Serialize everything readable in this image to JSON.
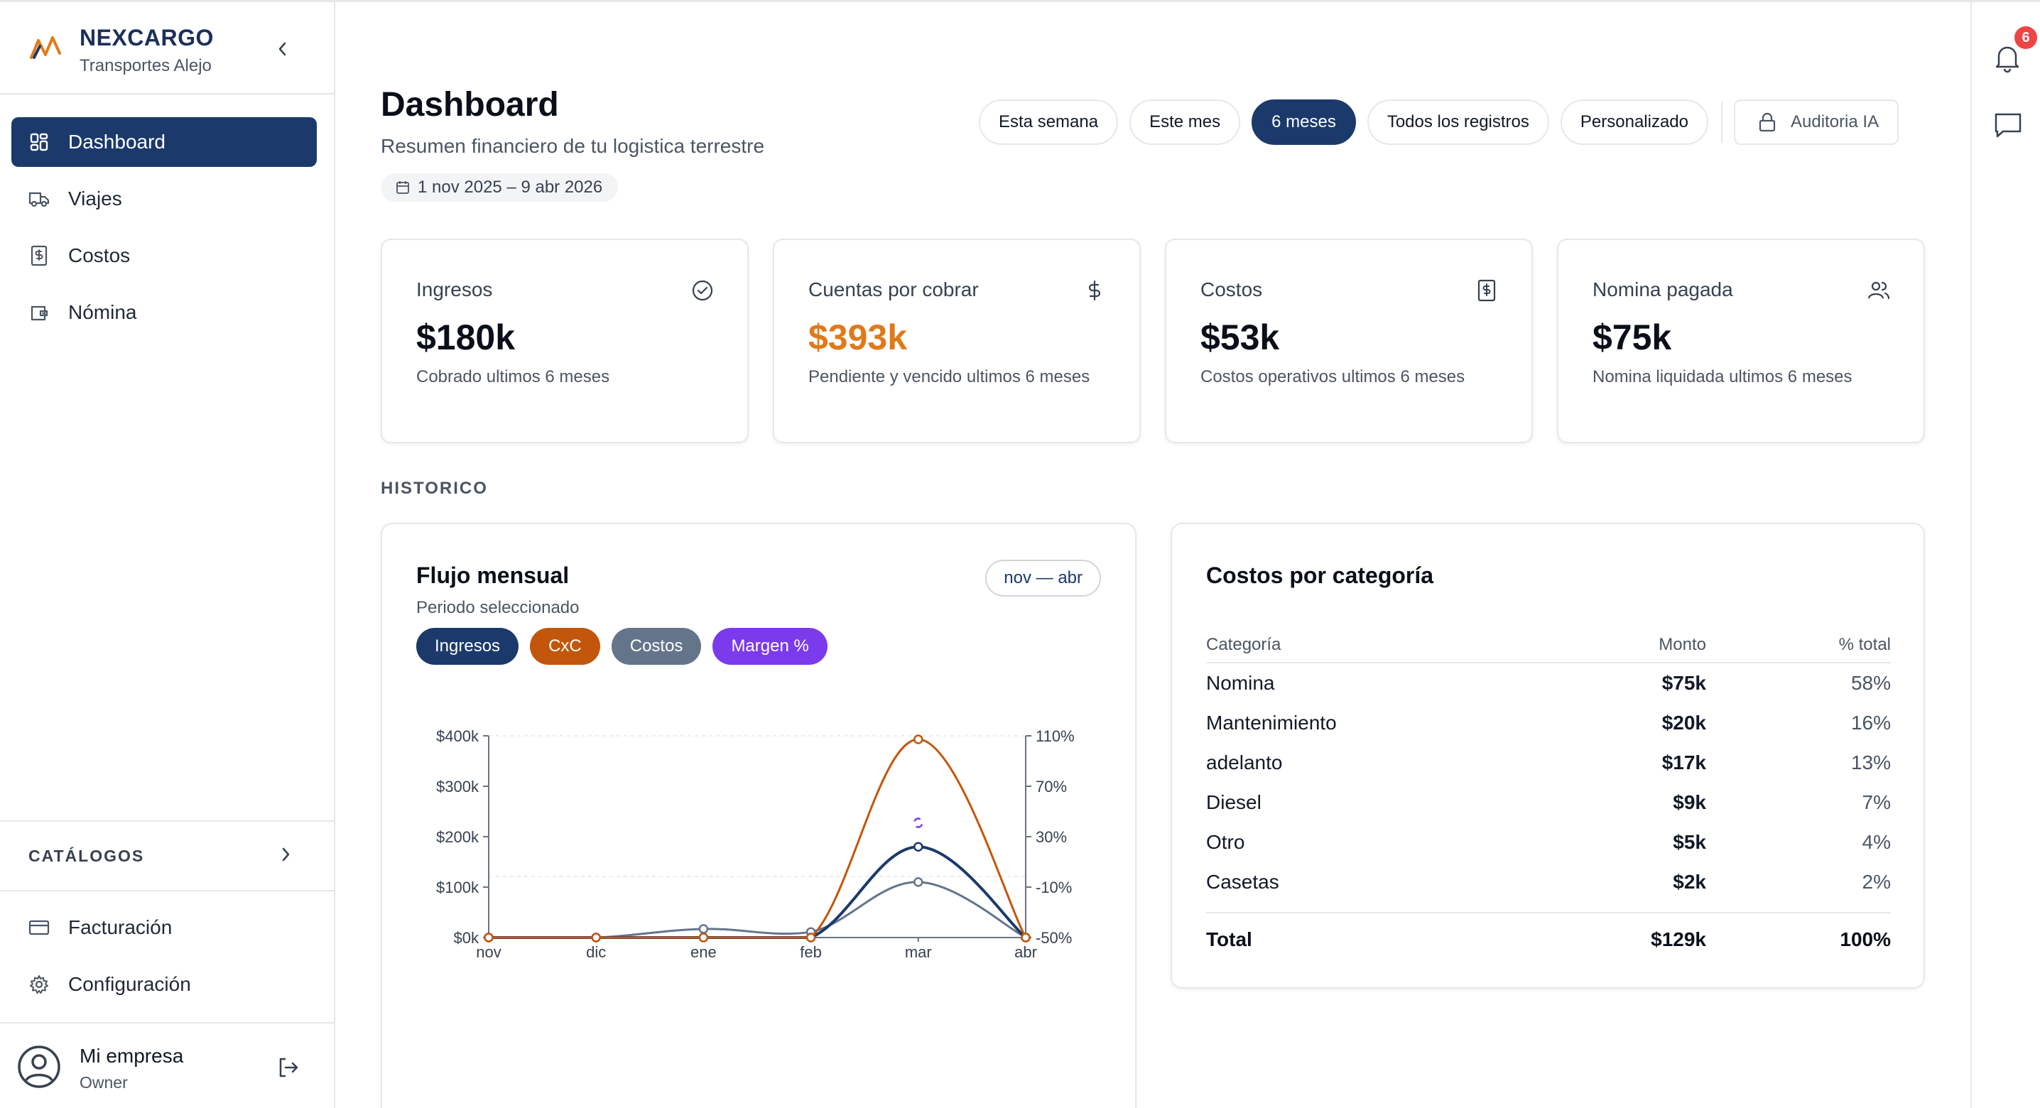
{
  "brand": {
    "name": "NEXCARGO",
    "subtitle": "Transportes Alejo"
  },
  "sidebar": {
    "items": [
      {
        "label": "Dashboard",
        "icon": "dashboard-grid-icon",
        "active": true
      },
      {
        "label": "Viajes",
        "icon": "truck-icon"
      },
      {
        "label": "Costos",
        "icon": "receipt-dollar-icon"
      },
      {
        "label": "Nómina",
        "icon": "wallet-icon"
      }
    ],
    "catalogs_label": "CATÁLOGOS",
    "bottom_items": [
      {
        "label": "Facturación",
        "icon": "credit-card-icon"
      },
      {
        "label": "Configuración",
        "icon": "gear-icon"
      }
    ],
    "user": {
      "name": "Mi empresa",
      "role": "Owner"
    }
  },
  "notifications": {
    "count": "6"
  },
  "header": {
    "title": "Dashboard",
    "subtitle": "Resumen financiero de tu logistica terrestre",
    "date_range": "1 nov 2025 – 9 abr 2026"
  },
  "filters": {
    "items": [
      "Esta semana",
      "Este mes",
      "6 meses",
      "Todos los registros",
      "Personalizado"
    ],
    "active": "6 meses",
    "ia_label": "Auditoria IA"
  },
  "kpis": [
    {
      "label": "Ingresos",
      "value": "$180k",
      "desc": "Cobrado ultimos 6 meses",
      "icon": "check-circle-icon"
    },
    {
      "label": "Cuentas por cobrar",
      "value": "$393k",
      "desc": "Pendiente y vencido ultimos 6 meses",
      "icon": "dollar-icon"
    },
    {
      "label": "Costos",
      "value": "$53k",
      "desc": "Costos operativos ultimos 6 meses",
      "icon": "receipt-dollar-icon"
    },
    {
      "label": "Nomina pagada",
      "value": "$75k",
      "desc": "Nomina liquidada ultimos 6 meses",
      "icon": "users-icon"
    }
  ],
  "section_label": "HISTORICO",
  "flow": {
    "title": "Flujo mensual",
    "subtitle": "Periodo seleccionado",
    "range": "nov — abr",
    "legend": [
      "Ingresos",
      "CxC",
      "Costos",
      "Margen %"
    ]
  },
  "colors": {
    "ingresos": "#1b3a6b",
    "cxc": "#c2570c",
    "costos": "#64748b",
    "margen": "#7c3aed",
    "accent": "#1b3a6b",
    "orange": "#e07a18"
  },
  "chart_data": {
    "type": "line",
    "x": [
      "nov",
      "dic",
      "ene",
      "feb",
      "mar",
      "abr"
    ],
    "y_left_ticks": [
      "$0k",
      "$100k",
      "$200k",
      "$300k",
      "$400k"
    ],
    "y_left_range": [
      0,
      400
    ],
    "y_right_ticks": [
      "-50%",
      "-10%",
      "30%",
      "70%",
      "110%"
    ],
    "y_right_range": [
      -50,
      110
    ],
    "series": [
      {
        "name": "Ingresos",
        "axis": "left",
        "values": [
          0,
          0,
          0,
          0,
          180,
          0
        ]
      },
      {
        "name": "CxC",
        "axis": "left",
        "values": [
          0,
          0,
          0,
          0,
          393,
          0
        ]
      },
      {
        "name": "Costos",
        "axis": "left",
        "values": [
          0,
          0,
          17,
          11,
          110,
          0
        ]
      },
      {
        "name": "Margen %",
        "axis": "right",
        "values": [
          null,
          null,
          null,
          null,
          41,
          null
        ]
      }
    ],
    "grid": false
  },
  "categories": {
    "title": "Costos por categoría",
    "headers": [
      "Categoría",
      "Monto",
      "% total"
    ],
    "rows": [
      {
        "name": "Nomina",
        "amount": "$75k",
        "pct": "58%"
      },
      {
        "name": "Mantenimiento",
        "amount": "$20k",
        "pct": "16%"
      },
      {
        "name": "adelanto",
        "amount": "$17k",
        "pct": "13%"
      },
      {
        "name": "Diesel",
        "amount": "$9k",
        "pct": "7%"
      },
      {
        "name": "Otro",
        "amount": "$5k",
        "pct": "4%"
      },
      {
        "name": "Casetas",
        "amount": "$2k",
        "pct": "2%"
      }
    ],
    "total": {
      "name": "Total",
      "amount": "$129k",
      "pct": "100%"
    }
  }
}
